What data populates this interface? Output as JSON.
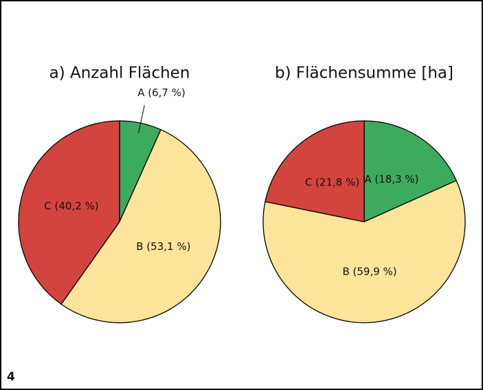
{
  "page_number": "4",
  "chart_data": [
    {
      "type": "pie",
      "title": "a) Anzahl Flächen",
      "values": [
        6.7,
        53.1,
        40.2
      ],
      "value_labels": [
        "A (6,7 %)",
        "B (53,1 %)",
        "C (40,2 %)"
      ],
      "colors": [
        "#3dab5e",
        "#fde49b",
        "#d4443f"
      ]
    },
    {
      "type": "pie",
      "title": "b) Flächensumme [ha]",
      "values": [
        18.3,
        59.9,
        21.8
      ],
      "value_labels": [
        "A (18,3 %)",
        "B (59,9 %)",
        "C (21,8 %)"
      ],
      "colors": [
        "#3dab5e",
        "#fde49b",
        "#d4443f"
      ]
    }
  ]
}
